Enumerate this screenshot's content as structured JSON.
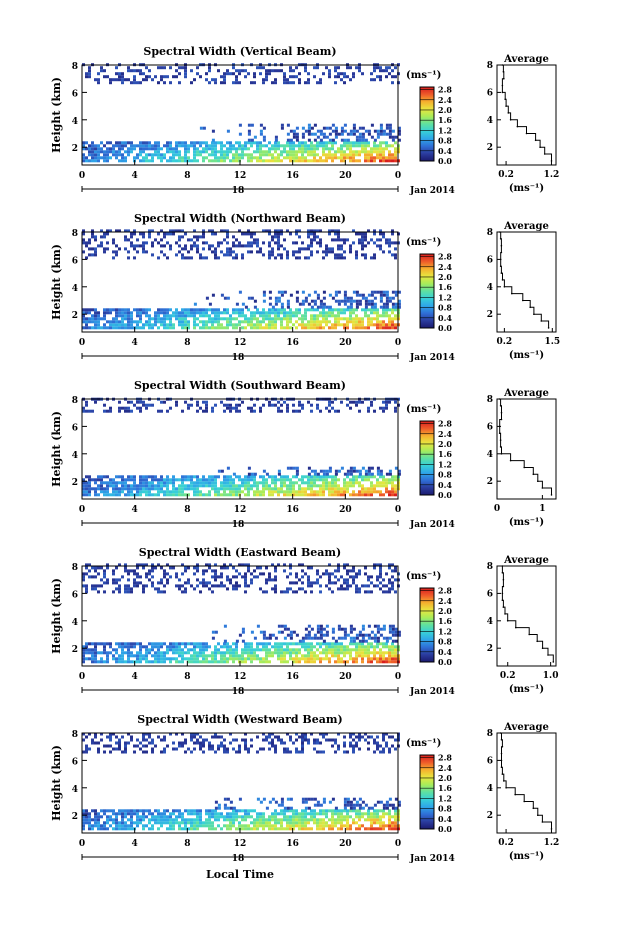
{
  "figure": {
    "shared_x_label": "Local Time",
    "date_label": "Jan 2014",
    "day_label": "18",
    "average_title": "Average",
    "unit_label": "(ms⁻¹)"
  },
  "colorbar": {
    "stops": [
      "#1a1a6e",
      "#2b3c9e",
      "#2f6fd6",
      "#2fa6e8",
      "#38d0d8",
      "#5fe0a0",
      "#a8ec5a",
      "#e8e640",
      "#f5b02e",
      "#ee5a2a",
      "#d81e1e"
    ]
  },
  "chart_data": [
    {
      "type": "heatmap",
      "title": "Spectral Width (Vertical Beam)",
      "ylabel": "Height (km)",
      "xlabel": "Local Time",
      "x_ticks": [
        "0",
        "4",
        "8",
        "12",
        "16",
        "20",
        "0"
      ],
      "xlim": [
        0,
        24
      ],
      "y_ticks": [
        "2",
        "4",
        "6",
        "8"
      ],
      "ylim": [
        0.7,
        8
      ],
      "colorbar_ticks": [
        "0.0",
        "0.4",
        "0.8",
        "1.2",
        "1.6",
        "2.0",
        "2.4",
        "2.8"
      ],
      "colorbar_range": [
        0,
        2.9
      ],
      "layers": [
        {
          "y": [
            0.9,
            2.4
          ],
          "x": [
            0,
            24
          ],
          "ramp_to": 2.2
        },
        {
          "y": [
            2.4,
            3.6
          ],
          "x": [
            8.5,
            24
          ],
          "ramp_to": 0.6
        },
        {
          "y": [
            6.6,
            8
          ],
          "x": [
            0,
            24
          ],
          "ramp_to": 0.3
        }
      ],
      "profile": {
        "xlim": [
          0,
          1.3
        ],
        "x_ticks": [
          "0.2",
          "1.2"
        ],
        "y_ticks": [
          "2",
          "4",
          "6",
          "8"
        ],
        "heights": [
          1.0,
          1.5,
          2.0,
          2.5,
          3.0,
          3.5,
          4.0,
          4.5,
          5.0,
          5.5,
          6.0,
          6.5,
          7.0,
          7.5,
          8.0
        ],
        "values": [
          1.2,
          1.05,
          0.95,
          0.85,
          0.65,
          0.45,
          0.3,
          0.25,
          0.2,
          0.18,
          0.12,
          0.12,
          0.15,
          0.14,
          0.12
        ]
      }
    },
    {
      "type": "heatmap",
      "title": "Spectral Width (Northward Beam)",
      "ylabel": "Height (km)",
      "xlabel": "Local Time",
      "x_ticks": [
        "0",
        "4",
        "8",
        "12",
        "16",
        "20",
        "0"
      ],
      "xlim": [
        0,
        24
      ],
      "y_ticks": [
        "2",
        "4",
        "6",
        "8"
      ],
      "ylim": [
        0.7,
        8
      ],
      "colorbar_ticks": [
        "0.0",
        "0.4",
        "0.8",
        "1.2",
        "1.6",
        "2.0",
        "2.4",
        "2.8"
      ],
      "colorbar_range": [
        0,
        2.9
      ],
      "layers": [
        {
          "y": [
            0.9,
            2.4
          ],
          "x": [
            0,
            24
          ],
          "ramp_to": 2.2
        },
        {
          "y": [
            2.4,
            3.6
          ],
          "x": [
            8.5,
            24
          ],
          "ramp_to": 0.6
        },
        {
          "y": [
            6.0,
            8
          ],
          "x": [
            0,
            24
          ],
          "ramp_to": 0.3
        }
      ],
      "profile": {
        "xlim": [
          0,
          1.6
        ],
        "x_ticks": [
          "0.2",
          "1.5"
        ],
        "y_ticks": [
          "2",
          "4",
          "6",
          "8"
        ],
        "heights": [
          1.0,
          1.5,
          2.0,
          2.5,
          3.0,
          3.5,
          4.0,
          4.5,
          5.0,
          5.5,
          6.0,
          6.5,
          7.0,
          7.5,
          8.0
        ],
        "values": [
          1.4,
          1.2,
          1.0,
          0.9,
          0.7,
          0.4,
          0.2,
          0.15,
          0.12,
          0.1,
          0.1,
          0.12,
          0.12,
          0.1,
          0.08
        ]
      }
    },
    {
      "type": "heatmap",
      "title": "Spectral Width (Southward Beam)",
      "ylabel": "Height (km)",
      "xlabel": "Local Time",
      "x_ticks": [
        "0",
        "4",
        "8",
        "12",
        "16",
        "20",
        "0"
      ],
      "xlim": [
        0,
        24
      ],
      "y_ticks": [
        "2",
        "4",
        "6",
        "8"
      ],
      "ylim": [
        0.7,
        8
      ],
      "colorbar_ticks": [
        "0.0",
        "0.4",
        "0.8",
        "1.2",
        "1.6",
        "2.0",
        "2.4",
        "2.8"
      ],
      "colorbar_range": [
        0,
        2.9
      ],
      "layers": [
        {
          "y": [
            0.9,
            2.4
          ],
          "x": [
            0,
            24
          ],
          "ramp_to": 2.2
        },
        {
          "y": [
            2.4,
            3.0
          ],
          "x": [
            8.5,
            24
          ],
          "ramp_to": 0.6
        },
        {
          "y": [
            7.0,
            8
          ],
          "x": [
            0,
            24
          ],
          "ramp_to": 0.3
        }
      ],
      "profile": {
        "xlim": [
          0,
          1.3
        ],
        "x_ticks": [
          "0",
          "1"
        ],
        "y_ticks": [
          "2",
          "4",
          "6",
          "8"
        ],
        "heights": [
          1.0,
          1.5,
          2.0,
          2.5,
          3.0,
          3.5,
          4.0,
          4.5,
          5.0,
          5.5,
          6.0,
          6.5,
          7.0,
          7.5,
          8.0
        ],
        "values": [
          1.2,
          1.0,
          0.9,
          0.8,
          0.6,
          0.3,
          0.1,
          0.08,
          0.08,
          0.06,
          0.06,
          0.1,
          0.1,
          0.08,
          0.06
        ]
      }
    },
    {
      "type": "heatmap",
      "title": "Spectral Width (Eastward Beam)",
      "ylabel": "Height (km)",
      "xlabel": "Local Time",
      "x_ticks": [
        "0",
        "4",
        "8",
        "12",
        "16",
        "20",
        "0"
      ],
      "xlim": [
        0,
        24
      ],
      "y_ticks": [
        "2",
        "4",
        "6",
        "8"
      ],
      "ylim": [
        0.7,
        8
      ],
      "colorbar_ticks": [
        "0.0",
        "0.4",
        "0.8",
        "1.2",
        "1.6",
        "2.0",
        "2.4",
        "2.8"
      ],
      "colorbar_range": [
        0,
        2.9
      ],
      "layers": [
        {
          "y": [
            0.9,
            2.4
          ],
          "x": [
            0,
            24
          ],
          "ramp_to": 2.2
        },
        {
          "y": [
            2.4,
            3.6
          ],
          "x": [
            8.5,
            24
          ],
          "ramp_to": 0.6
        },
        {
          "y": [
            6.0,
            8
          ],
          "x": [
            0,
            24
          ],
          "ramp_to": 0.3
        }
      ],
      "profile": {
        "xlim": [
          0,
          1.1
        ],
        "x_ticks": [
          "0.2",
          "1.0"
        ],
        "y_ticks": [
          "2",
          "4",
          "6",
          "8"
        ],
        "heights": [
          1.0,
          1.5,
          2.0,
          2.5,
          3.0,
          3.5,
          4.0,
          4.5,
          5.0,
          5.5,
          6.0,
          6.5,
          7.0,
          7.5,
          8.0
        ],
        "values": [
          1.05,
          0.95,
          0.85,
          0.75,
          0.6,
          0.35,
          0.2,
          0.15,
          0.12,
          0.1,
          0.1,
          0.12,
          0.12,
          0.1,
          0.1
        ]
      }
    },
    {
      "type": "heatmap",
      "title": "Spectral Width (Westward Beam)",
      "ylabel": "Height (km)",
      "xlabel": "Local Time",
      "x_ticks": [
        "0",
        "4",
        "8",
        "12",
        "16",
        "20",
        "0"
      ],
      "xlim": [
        0,
        24
      ],
      "y_ticks": [
        "2",
        "4",
        "6",
        "8"
      ],
      "ylim": [
        0.7,
        8
      ],
      "colorbar_ticks": [
        "0.0",
        "0.4",
        "0.8",
        "1.2",
        "1.6",
        "2.0",
        "2.4",
        "2.8"
      ],
      "colorbar_range": [
        0,
        2.9
      ],
      "layers": [
        {
          "y": [
            0.9,
            2.4
          ],
          "x": [
            0,
            24
          ],
          "ramp_to": 2.2
        },
        {
          "y": [
            2.4,
            3.2
          ],
          "x": [
            8.5,
            24
          ],
          "ramp_to": 0.6
        },
        {
          "y": [
            6.5,
            8
          ],
          "x": [
            0,
            24
          ],
          "ramp_to": 0.3
        }
      ],
      "profile": {
        "xlim": [
          0,
          1.3
        ],
        "x_ticks": [
          "0.2",
          "1.2"
        ],
        "y_ticks": [
          "2",
          "4",
          "6",
          "8"
        ],
        "heights": [
          1.0,
          1.5,
          2.0,
          2.5,
          3.0,
          3.5,
          4.0,
          4.5,
          5.0,
          5.5,
          6.0,
          6.5,
          7.0,
          7.5,
          8.0
        ],
        "values": [
          1.2,
          1.0,
          0.9,
          0.8,
          0.6,
          0.4,
          0.2,
          0.15,
          0.12,
          0.1,
          0.1,
          0.1,
          0.12,
          0.1,
          0.08
        ]
      }
    }
  ]
}
